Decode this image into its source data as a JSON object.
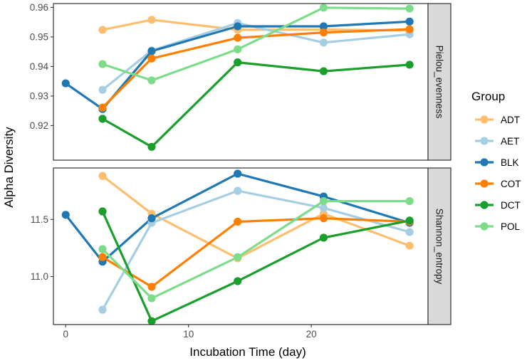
{
  "chart_data": {
    "type": "line",
    "xlabel": "Incubation Time (day)",
    "ylabel": "Alpha Diversity",
    "xlim": [
      -1,
      29.5
    ],
    "x_ticks": [
      0,
      10,
      20
    ],
    "legend": {
      "title": "Group",
      "position": "right",
      "entries": [
        "ADT",
        "AET",
        "BLK",
        "COT",
        "DCT",
        "POL"
      ]
    },
    "colors": {
      "ADT": "#fdbf6f",
      "AET": "#a6cee3",
      "BLK": "#1f78b4",
      "COT": "#ff7f00",
      "DCT": "#1a9e2c",
      "POL": "#7ddc8a"
    },
    "panels": [
      {
        "label": "Pielou_evenness",
        "ylim": [
          0.9083,
          0.9613
        ],
        "y_ticks": [
          0.92,
          0.93,
          0.94,
          0.95,
          0.96
        ],
        "y_tick_labels": [
          "0.92",
          "0.93",
          "0.94",
          "0.95",
          "0.96"
        ],
        "series": [
          {
            "name": "ADT",
            "x": [
              3,
              7,
              14,
              21,
              28
            ],
            "values": [
              0.9524,
              0.9558,
              0.9524,
              0.9525,
              0.9522
            ]
          },
          {
            "name": "AET",
            "x": [
              3,
              7,
              14,
              21,
              28
            ],
            "values": [
              0.9321,
              0.9454,
              0.9547,
              0.9481,
              0.9509
            ]
          },
          {
            "name": "BLK",
            "x": [
              0,
              3,
              7,
              14,
              21,
              28
            ],
            "values": [
              0.9343,
              0.9256,
              0.9452,
              0.9536,
              0.9536,
              0.9552
            ]
          },
          {
            "name": "COT",
            "x": [
              3,
              7,
              14,
              21,
              28
            ],
            "values": [
              0.9261,
              0.9427,
              0.9497,
              0.9515,
              0.9526
            ]
          },
          {
            "name": "DCT",
            "x": [
              3,
              7,
              14,
              21,
              28
            ],
            "values": [
              0.9223,
              0.9128,
              0.9414,
              0.9384,
              0.9406
            ]
          },
          {
            "name": "POL",
            "x": [
              3,
              7,
              14,
              21,
              28
            ],
            "values": [
              0.9408,
              0.9353,
              0.9458,
              0.9599,
              0.9596
            ]
          }
        ]
      },
      {
        "label": "Shannon_entropy",
        "ylim": [
          10.58,
          11.95
        ],
        "y_ticks": [
          11.0,
          11.5
        ],
        "y_tick_labels": [
          "11.0",
          "11.5"
        ],
        "series": [
          {
            "name": "ADT",
            "x": [
              3,
              7,
              14,
              21,
              28
            ],
            "values": [
              11.88,
              11.55,
              11.16,
              11.55,
              11.27
            ]
          },
          {
            "name": "AET",
            "x": [
              3,
              7,
              14,
              21,
              28
            ],
            "values": [
              10.71,
              11.47,
              11.75,
              11.6,
              11.39
            ]
          },
          {
            "name": "BLK",
            "x": [
              0,
              3,
              7,
              14,
              21,
              28
            ],
            "values": [
              11.54,
              11.13,
              11.51,
              11.9,
              11.7,
              11.47
            ]
          },
          {
            "name": "COT",
            "x": [
              3,
              7,
              14,
              21,
              28
            ],
            "values": [
              11.17,
              10.91,
              11.48,
              11.51,
              11.48
            ]
          },
          {
            "name": "DCT",
            "x": [
              3,
              7,
              14,
              21,
              28
            ],
            "values": [
              11.57,
              10.61,
              10.96,
              11.34,
              11.49
            ]
          },
          {
            "name": "POL",
            "x": [
              3,
              7,
              14,
              21,
              28
            ],
            "values": [
              11.24,
              10.81,
              11.17,
              11.66,
              11.66
            ]
          }
        ]
      }
    ]
  }
}
